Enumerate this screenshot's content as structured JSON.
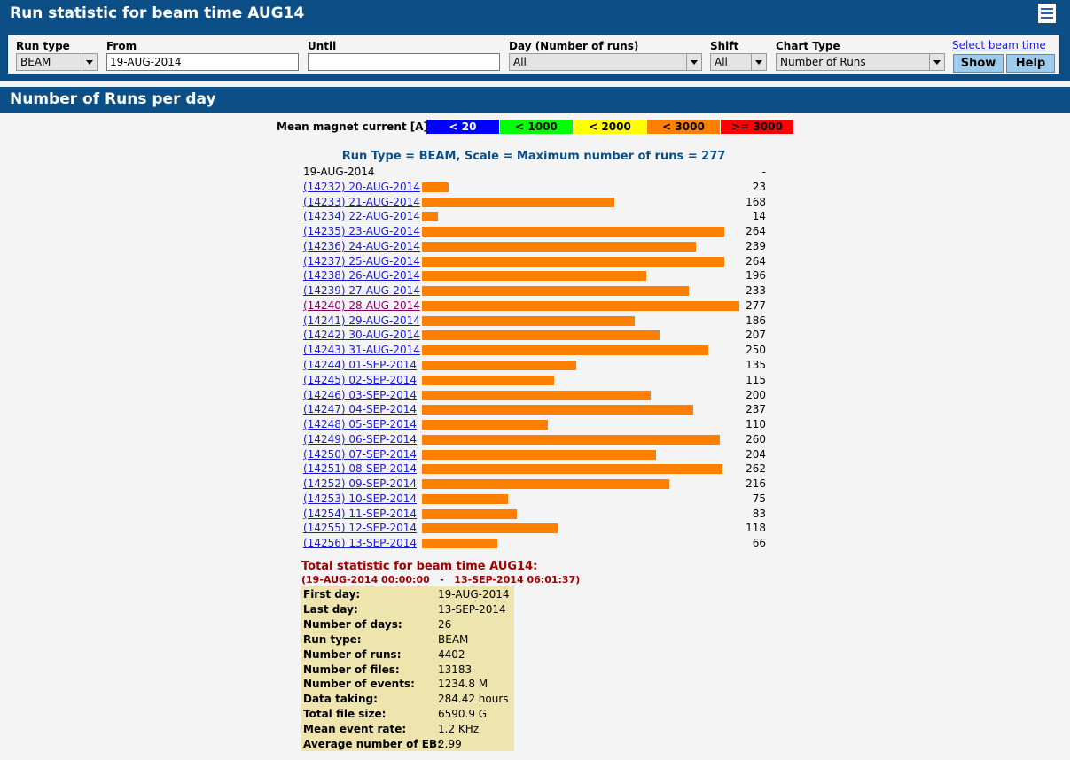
{
  "page": {
    "title": "Run statistic for beam time AUG14"
  },
  "filters": {
    "run_type": {
      "label": "Run type",
      "value": "BEAM"
    },
    "from": {
      "label": "From",
      "value": "19-AUG-2014"
    },
    "until": {
      "label": "Until",
      "value": ""
    },
    "day": {
      "label": "Day (Number of runs)",
      "value": "All"
    },
    "shift": {
      "label": "Shift",
      "value": "All"
    },
    "chart_type": {
      "label": "Chart Type",
      "value": "Number of Runs"
    },
    "select_beam_time": "Select beam time",
    "show_label": "Show",
    "help_label": "Help"
  },
  "section": {
    "title": "Number of Runs per day"
  },
  "legend": {
    "label": "Mean magnet current [A]:",
    "items": [
      {
        "text": "< 20",
        "color": "#0000ff",
        "text_color": "#ffffff"
      },
      {
        "text": "< 1000",
        "color": "#00ff00",
        "text_color": "#000000"
      },
      {
        "text": "< 2000",
        "color": "#ffff00",
        "text_color": "#000000"
      },
      {
        "text": "< 3000",
        "color": "#ff7f00",
        "text_color": "#000000"
      },
      {
        "text": ">= 3000",
        "color": "#ff0000",
        "text_color": "#000000"
      }
    ]
  },
  "chart_data": {
    "type": "bar",
    "title": "Run Type = BEAM, Scale = Maximum number of runs = 277",
    "max": 277,
    "bar_color": "#ff7f00",
    "rows": [
      {
        "label": "19-AUG-2014",
        "value": null,
        "value_text": "-",
        "link": false
      },
      {
        "label": "(14232) 20-AUG-2014",
        "value": 23,
        "value_text": "23",
        "link": true
      },
      {
        "label": "(14233) 21-AUG-2014",
        "value": 168,
        "value_text": "168",
        "link": true
      },
      {
        "label": "(14234) 22-AUG-2014",
        "value": 14,
        "value_text": "14",
        "link": true
      },
      {
        "label": "(14235) 23-AUG-2014",
        "value": 264,
        "value_text": "264",
        "link": true
      },
      {
        "label": "(14236) 24-AUG-2014",
        "value": 239,
        "value_text": "239",
        "link": true
      },
      {
        "label": "(14237) 25-AUG-2014",
        "value": 264,
        "value_text": "264",
        "link": true
      },
      {
        "label": "(14238) 26-AUG-2014",
        "value": 196,
        "value_text": "196",
        "link": true
      },
      {
        "label": "(14239) 27-AUG-2014",
        "value": 233,
        "value_text": "233",
        "link": true
      },
      {
        "label": "(14240) 28-AUG-2014",
        "value": 277,
        "value_text": "277",
        "link": true,
        "visited": true
      },
      {
        "label": "(14241) 29-AUG-2014",
        "value": 186,
        "value_text": "186",
        "link": true
      },
      {
        "label": "(14242) 30-AUG-2014",
        "value": 207,
        "value_text": "207",
        "link": true
      },
      {
        "label": "(14243) 31-AUG-2014",
        "value": 250,
        "value_text": "250",
        "link": true
      },
      {
        "label": "(14244) 01-SEP-2014",
        "value": 135,
        "value_text": "135",
        "link": true
      },
      {
        "label": "(14245) 02-SEP-2014",
        "value": 115,
        "value_text": "115",
        "link": true
      },
      {
        "label": "(14246) 03-SEP-2014",
        "value": 200,
        "value_text": "200",
        "link": true
      },
      {
        "label": "(14247) 04-SEP-2014",
        "value": 237,
        "value_text": "237",
        "link": true
      },
      {
        "label": "(14248) 05-SEP-2014",
        "value": 110,
        "value_text": "110",
        "link": true
      },
      {
        "label": "(14249) 06-SEP-2014",
        "value": 260,
        "value_text": "260",
        "link": true
      },
      {
        "label": "(14250) 07-SEP-2014",
        "value": 204,
        "value_text": "204",
        "link": true
      },
      {
        "label": "(14251) 08-SEP-2014",
        "value": 262,
        "value_text": "262",
        "link": true
      },
      {
        "label": "(14252) 09-SEP-2014",
        "value": 216,
        "value_text": "216",
        "link": true
      },
      {
        "label": "(14253) 10-SEP-2014",
        "value": 75,
        "value_text": "75",
        "link": true
      },
      {
        "label": "(14254) 11-SEP-2014",
        "value": 83,
        "value_text": "83",
        "link": true
      },
      {
        "label": "(14255) 12-SEP-2014",
        "value": 118,
        "value_text": "118",
        "link": true
      },
      {
        "label": "(14256) 13-SEP-2014",
        "value": 66,
        "value_text": "66",
        "link": true
      }
    ]
  },
  "total": {
    "title": "Total statistic for beam time AUG14:",
    "range": "(19-AUG-2014 00:00:00   -   13-SEP-2014 06:01:37)",
    "stats": [
      {
        "key": "First day:",
        "value": "19-AUG-2014"
      },
      {
        "key": "Last day:",
        "value": "13-SEP-2014"
      },
      {
        "key": "Number of days:",
        "value": "26"
      },
      {
        "key": "Run type:",
        "value": "BEAM"
      },
      {
        "key": "Number of runs:",
        "value": "4402"
      },
      {
        "key": "Number of files:",
        "value": "13183"
      },
      {
        "key": "Number of events:",
        "value": "1234.8 M"
      },
      {
        "key": "Data taking:",
        "value": "284.42 hours"
      },
      {
        "key": "Total file size:",
        "value": "6590.9 G"
      },
      {
        "key": "Mean event rate:",
        "value": "1.2 KHz"
      },
      {
        "key": "Average number of EB:",
        "value": "2.99"
      }
    ]
  }
}
